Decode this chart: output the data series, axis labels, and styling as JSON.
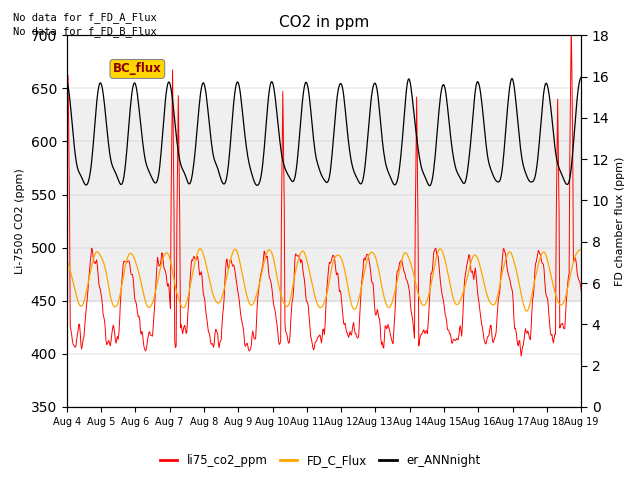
{
  "title": "CO2 in ppm",
  "ylabel_left": "Li-7500 CO2 (ppm)",
  "ylabel_right": "FD chamber flux (ppm)",
  "ylim_left": [
    350,
    700
  ],
  "ylim_right": [
    0,
    18
  ],
  "x_tick_labels": [
    "Aug 4",
    "Aug 5",
    "Aug 6",
    "Aug 7",
    "Aug 8",
    "Aug 9",
    "Aug 10",
    "Aug 11",
    "Aug 12",
    "Aug 13",
    "Aug 14",
    "Aug 15",
    "Aug 16",
    "Aug 17",
    "Aug 18",
    "Aug 19"
  ],
  "annotation_lines": [
    "No data for f_FD_A_Flux",
    "No data for f_FD_B_Flux"
  ],
  "bc_flux_label": "BC_flux",
  "legend_entries": [
    "li75_co2_ppm",
    "FD_C_Flux",
    "er_ANNnight"
  ],
  "line_colors": {
    "li75_co2_ppm": "#FF0000",
    "FD_C_Flux": "#FFA500",
    "er_ANNnight": "#000000"
  },
  "shading_color": "#D3D3D3",
  "shading_alpha": 0.35,
  "shading_ylim": [
    450,
    640
  ],
  "background_color": "#FFFFFF",
  "figsize": [
    6.4,
    4.8
  ],
  "dpi": 100
}
